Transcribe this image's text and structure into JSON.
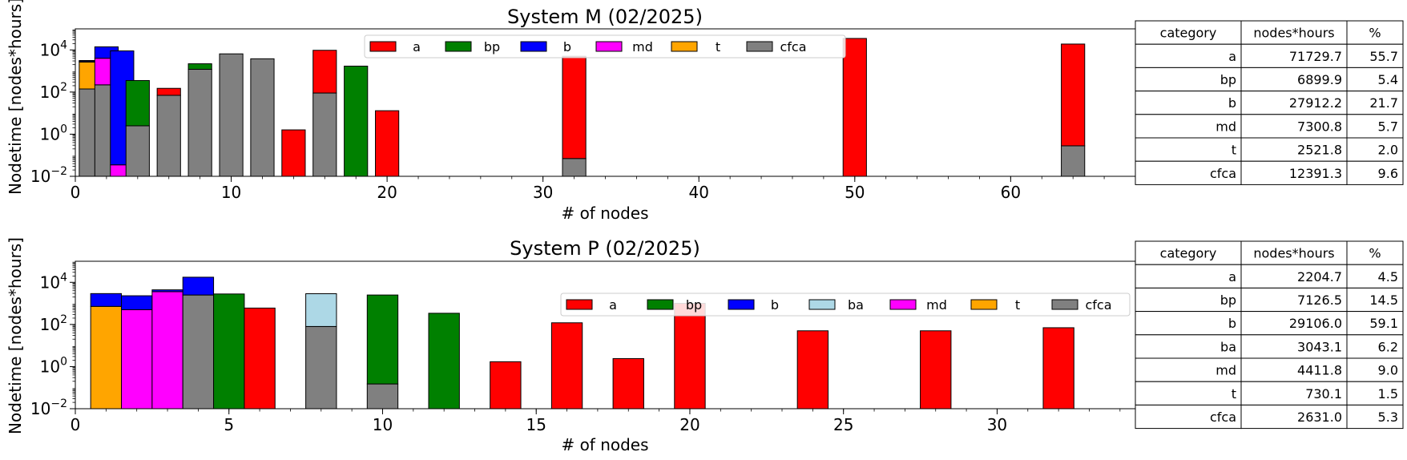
{
  "colors": {
    "a": "#ff0000",
    "bp": "#008000",
    "b": "#0000ff",
    "ba": "#add8e6",
    "md": "#ff00ff",
    "t": "#ffa500",
    "cfca": "#808080"
  },
  "chart_data": [
    {
      "type": "bar",
      "stacked": true,
      "yscale": "log",
      "title": "System M (02/2025)",
      "xlabel": "# of nodes",
      "ylabel": "Nodetime [nodes*hours]",
      "xlim": [
        0,
        68
      ],
      "ylim": [
        0.01,
        100000
      ],
      "xticks": [
        0,
        10,
        20,
        30,
        40,
        50,
        60
      ],
      "yticks": [
        {
          "value": 0.01,
          "base": "10",
          "exp": "−2"
        },
        {
          "value": 1,
          "base": "10",
          "exp": "0"
        },
        {
          "value": 100,
          "base": "10",
          "exp": "2"
        },
        {
          "value": 10000,
          "base": "10",
          "exp": "4"
        }
      ],
      "bar_width": 1.5,
      "legend_position": "upper center",
      "legend": [
        "a",
        "bp",
        "b",
        "md",
        "t",
        "cfca"
      ],
      "stack_order": [
        "cfca",
        "t",
        "md",
        "b",
        "bp",
        "a"
      ],
      "bars": [
        {
          "x": 1,
          "cfca": 140,
          "t": 2500,
          "md": 200,
          "b": 300
        },
        {
          "x": 2,
          "cfca": 220,
          "md": 3800,
          "b": 10000
        },
        {
          "x": 3,
          "md": 0.035,
          "b": 9000
        },
        {
          "x": 4,
          "cfca": 2.5,
          "bp": 350
        },
        {
          "x": 6,
          "cfca": 70,
          "a": 80
        },
        {
          "x": 8,
          "cfca": 1200,
          "bp": 1000
        },
        {
          "x": 10,
          "cfca": 6500
        },
        {
          "x": 12,
          "cfca": 3800
        },
        {
          "x": 14,
          "a": 1.6
        },
        {
          "x": 16,
          "cfca": 90,
          "a": 9500
        },
        {
          "x": 18,
          "bp": 1700
        },
        {
          "x": 20,
          "a": 13
        },
        {
          "x": 32,
          "cfca": 0.07,
          "a": 5000
        },
        {
          "x": 50,
          "a": 35000
        },
        {
          "x": 64,
          "cfca": 0.28,
          "a": 19000
        }
      ],
      "table": {
        "headers": [
          "category",
          "nodes*hours",
          "%"
        ],
        "rows": [
          [
            "a",
            "71729.7",
            "55.7"
          ],
          [
            "bp",
            "6899.9",
            "5.4"
          ],
          [
            "b",
            "27912.2",
            "21.7"
          ],
          [
            "md",
            "7300.8",
            "5.7"
          ],
          [
            "t",
            "2521.8",
            "2.0"
          ],
          [
            "cfca",
            "12391.3",
            "9.6"
          ]
        ]
      }
    },
    {
      "type": "bar",
      "stacked": true,
      "yscale": "log",
      "title": "System P (02/2025)",
      "xlabel": "# of nodes",
      "ylabel": "Nodetime [nodes*hours]",
      "xlim": [
        0,
        34.5
      ],
      "ylim": [
        0.01,
        100000
      ],
      "xticks": [
        0,
        5,
        10,
        15,
        20,
        25,
        30
      ],
      "yticks": [
        {
          "value": 0.01,
          "base": "10",
          "exp": "−2"
        },
        {
          "value": 1,
          "base": "10",
          "exp": "0"
        },
        {
          "value": 100,
          "base": "10",
          "exp": "2"
        },
        {
          "value": 10000,
          "base": "10",
          "exp": "4"
        }
      ],
      "bar_width": 1.0,
      "legend_position": "upper right",
      "legend": [
        "a",
        "bp",
        "b",
        "ba",
        "md",
        "t",
        "cfca"
      ],
      "stack_order": [
        "cfca",
        "t",
        "md",
        "ba",
        "b",
        "bp",
        "a"
      ],
      "bars": [
        {
          "x": 1,
          "t": 720,
          "b": 2200
        },
        {
          "x": 2,
          "md": 500,
          "b": 1800
        },
        {
          "x": 3,
          "md": 3600,
          "b": 800
        },
        {
          "x": 4,
          "cfca": 2500,
          "b": 15000
        },
        {
          "x": 5,
          "bp": 2800
        },
        {
          "x": 6,
          "a": 600
        },
        {
          "x": 8,
          "cfca": 80,
          "ba": 2800
        },
        {
          "x": 10,
          "cfca": 0.15,
          "bp": 2500
        },
        {
          "x": 12,
          "bp": 340
        },
        {
          "x": 14,
          "a": 1.7
        },
        {
          "x": 16,
          "a": 120
        },
        {
          "x": 18,
          "a": 2.4
        },
        {
          "x": 20,
          "a": 1000
        },
        {
          "x": 24,
          "a": 50
        },
        {
          "x": 28,
          "a": 50
        },
        {
          "x": 32,
          "a": 70
        }
      ],
      "table": {
        "headers": [
          "category",
          "nodes*hours",
          "%"
        ],
        "rows": [
          [
            "a",
            "2204.7",
            "4.5"
          ],
          [
            "bp",
            "7126.5",
            "14.5"
          ],
          [
            "b",
            "29106.0",
            "59.1"
          ],
          [
            "ba",
            "3043.1",
            "6.2"
          ],
          [
            "md",
            "4411.8",
            "9.0"
          ],
          [
            "t",
            "730.1",
            "1.5"
          ],
          [
            "cfca",
            "2631.0",
            "5.3"
          ]
        ]
      }
    }
  ]
}
